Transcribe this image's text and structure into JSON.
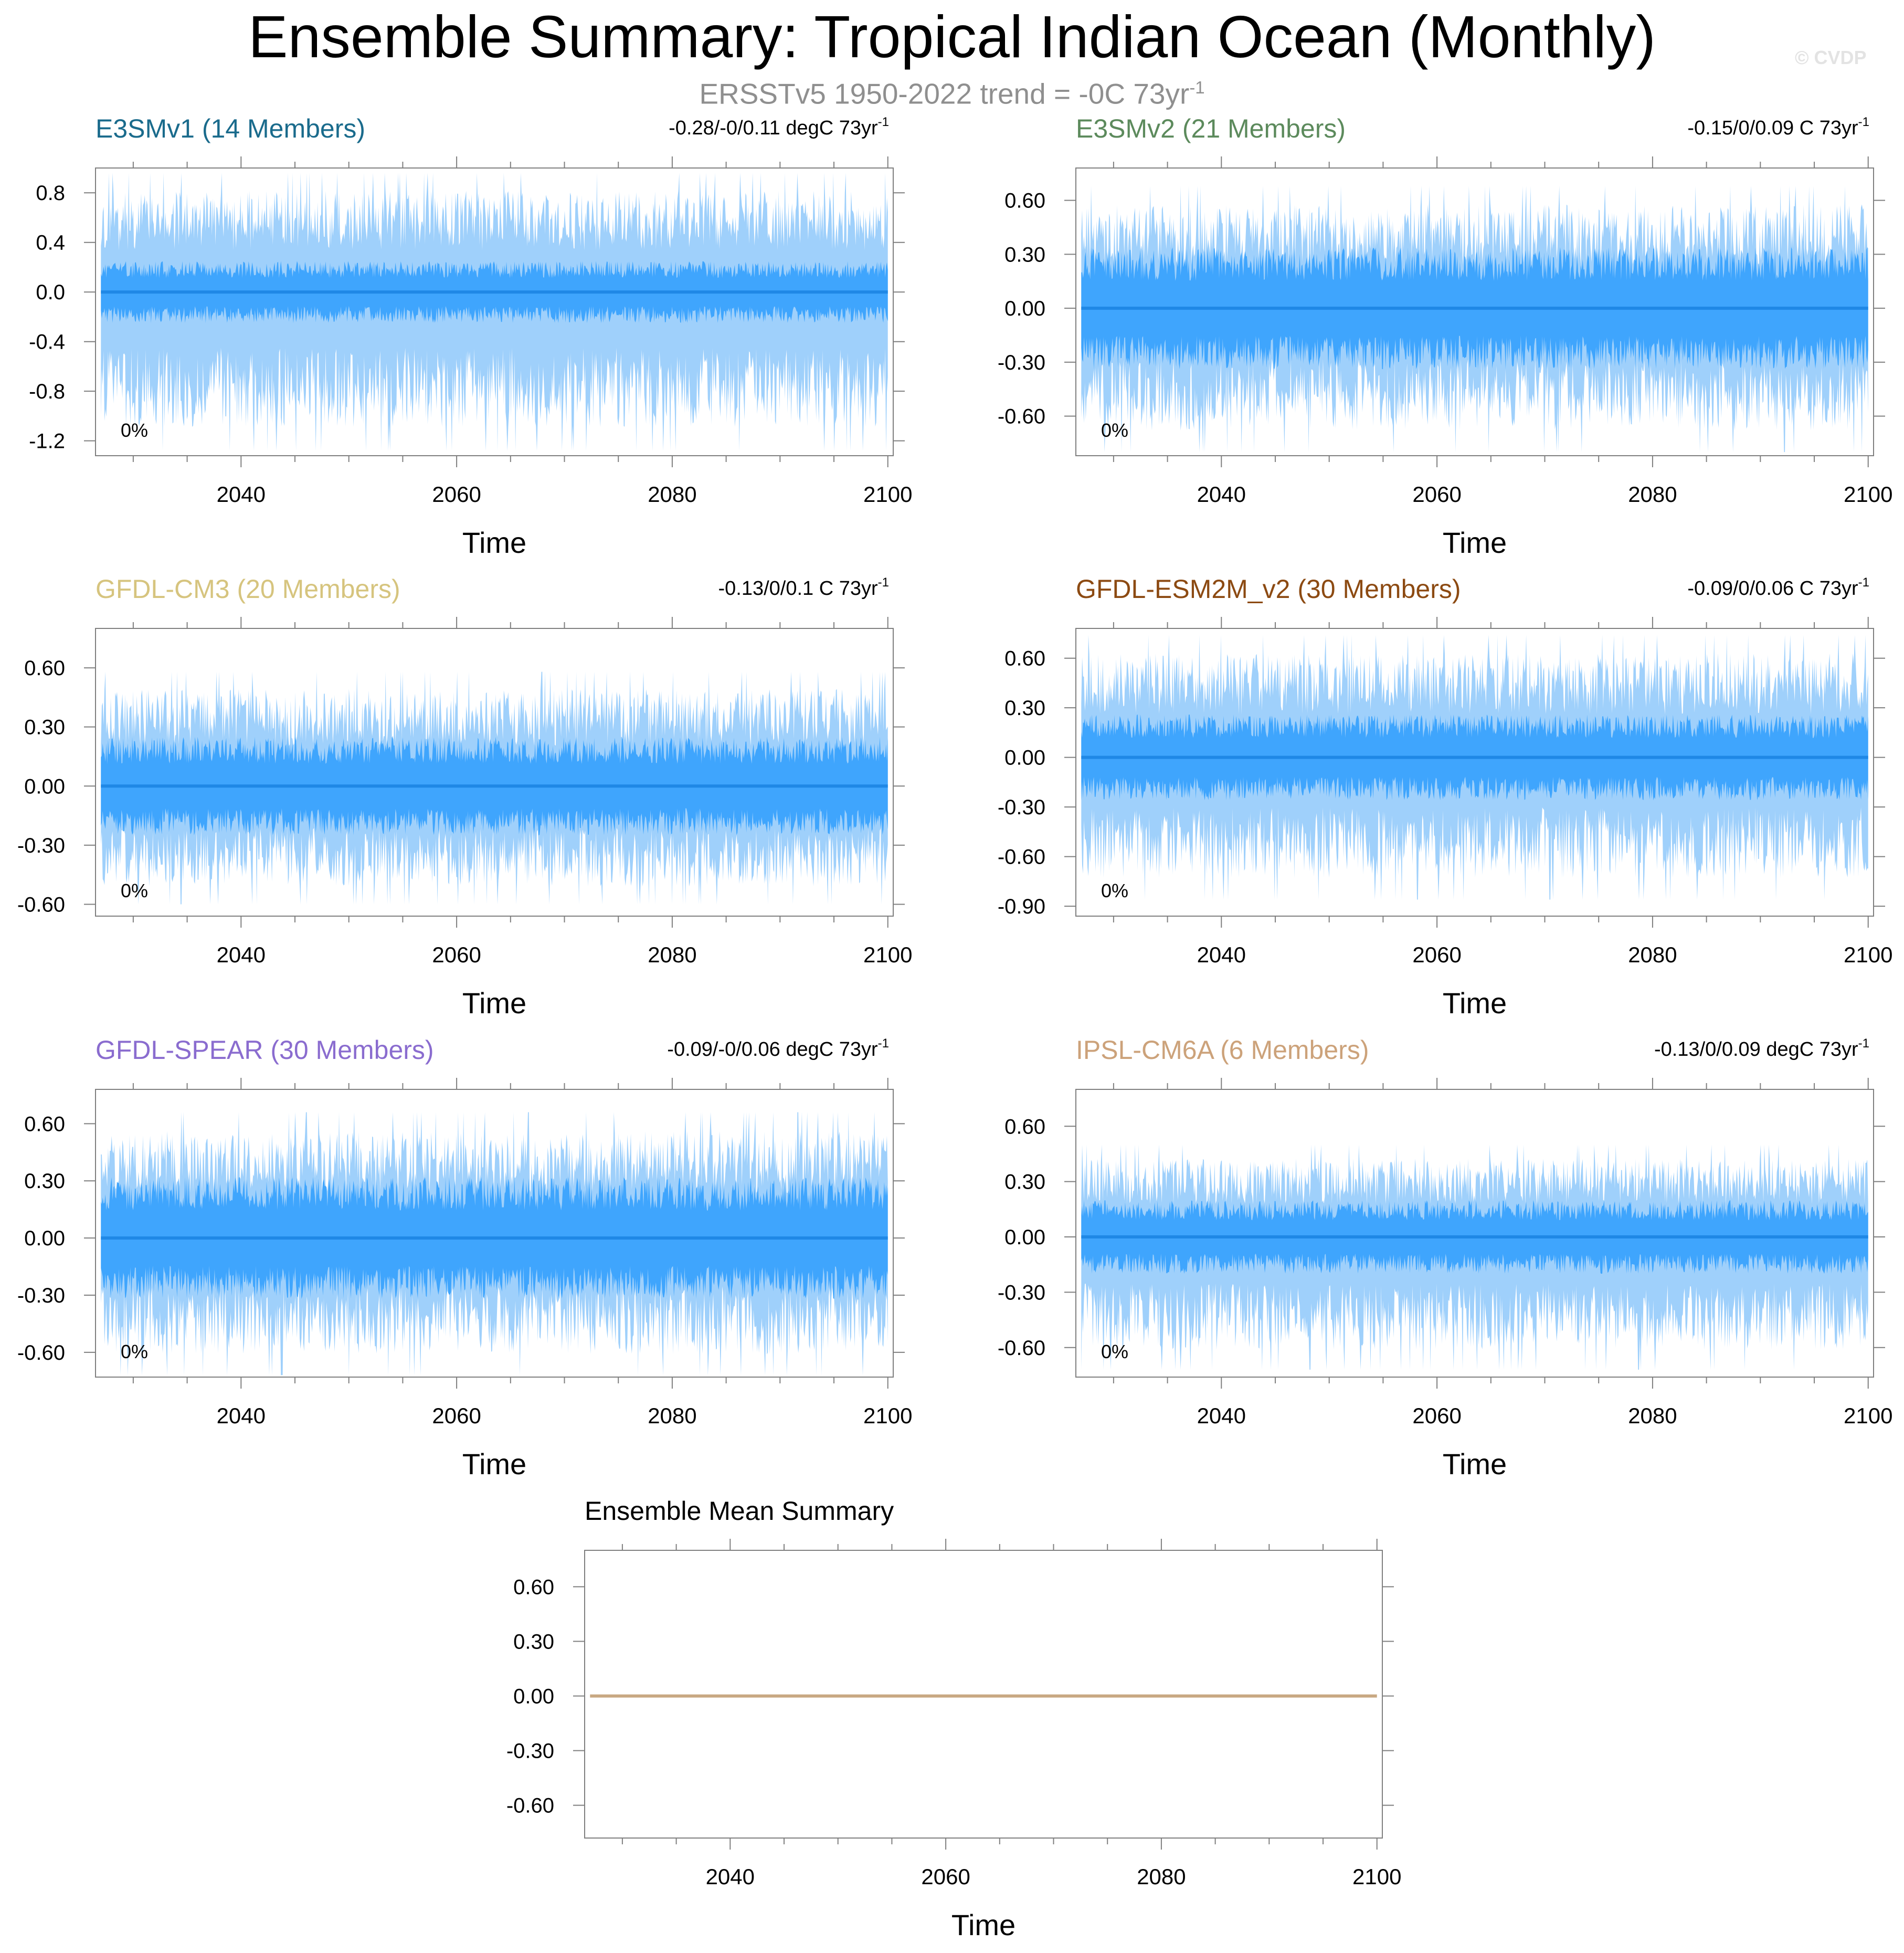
{
  "figure": {
    "title": "Ensemble Summary: Tropical Indian Ocean (Monthly)",
    "subtitle_text": "ERSSTv5 1950-2022 trend = -0C 73yr",
    "subtitle_sup": "-1",
    "watermark": "© CVDP"
  },
  "colors": {
    "spread_light": "#9fd0fb",
    "spread_dark": "#3fa5fd",
    "ensemble_mean_line": "#1f88e6",
    "summary_line": "#c8a882",
    "axis": "#7f7f7f"
  },
  "chart_data": [
    {
      "type": "area",
      "title": "E3SMv1 (14 Members)",
      "title_color": "#1a6b8c",
      "trend_text": "-0.28/-0/0.11 degC 73yr",
      "trend_sup": "-1",
      "percent_label": "0%",
      "xlabel": "Time",
      "ylabel": "",
      "xlim": [
        2026.5,
        2100.5
      ],
      "ylim": [
        -1.32,
        1.0
      ],
      "xticks": [
        2040,
        2060,
        2080,
        2100
      ],
      "yticks": [
        0.8,
        0.4,
        0.0,
        -0.4,
        -0.8,
        -1.2
      ],
      "ytick_labels": [
        "0.8",
        "0.4",
        "0.0",
        "-0.4",
        "-0.8",
        "-1.2"
      ],
      "ensemble_mean": 0.0,
      "inner_range": [
        -0.25,
        0.25
      ],
      "outer_range": [
        -1.28,
        0.96
      ],
      "seed": 11
    },
    {
      "type": "area",
      "title": "E3SMv2 (21 Members)",
      "title_color": "#5c8a5c",
      "trend_text": "-0.15/0/0.09 C 73yr",
      "trend_sup": "-1",
      "percent_label": "0%",
      "xlabel": "Time",
      "ylabel": "",
      "xlim": [
        2026.5,
        2100.5
      ],
      "ylim": [
        -0.82,
        0.78
      ],
      "xticks": [
        2040,
        2060,
        2080,
        2100
      ],
      "yticks": [
        0.6,
        0.3,
        0.0,
        -0.3,
        -0.6
      ],
      "ytick_labels": [
        "0.60",
        "0.30",
        "0.00",
        "-0.30",
        "-0.60"
      ],
      "ensemble_mean": 0.0,
      "inner_range": [
        -0.34,
        0.34
      ],
      "outer_range": [
        -0.8,
        0.68
      ],
      "seed": 23
    },
    {
      "type": "area",
      "title": "GFDL-CM3 (20 Members)",
      "title_color": "#d6c47e",
      "trend_text": "-0.13/0/0.1 C 73yr",
      "trend_sup": "-1",
      "percent_label": "0%",
      "xlabel": "Time",
      "ylabel": "",
      "xlim": [
        2026.5,
        2100.5
      ],
      "ylim": [
        -0.66,
        0.8
      ],
      "xticks": [
        2040,
        2060,
        2080,
        2100
      ],
      "yticks": [
        0.6,
        0.3,
        0.0,
        -0.3,
        -0.6
      ],
      "ytick_labels": [
        "0.60",
        "0.30",
        "0.00",
        "-0.30",
        "-0.60"
      ],
      "ensemble_mean": 0.0,
      "inner_range": [
        -0.25,
        0.25
      ],
      "outer_range": [
        -0.6,
        0.58
      ],
      "seed": 37
    },
    {
      "type": "area",
      "title": "GFDL-ESM2M_v2 (30 Members)",
      "title_color": "#8c4a12",
      "trend_text": "-0.09/0/0.06 C 73yr",
      "trend_sup": "-1",
      "percent_label": "0%",
      "xlabel": "Time",
      "ylabel": "",
      "xlim": [
        2026.5,
        2100.5
      ],
      "ylim": [
        -0.96,
        0.78
      ],
      "xticks": [
        2040,
        2060,
        2080,
        2100
      ],
      "yticks": [
        0.6,
        0.3,
        0.0,
        -0.3,
        -0.6,
        -0.9
      ],
      "ytick_labels": [
        "0.60",
        "0.30",
        "0.00",
        "-0.30",
        "-0.60",
        "-0.90"
      ],
      "ensemble_mean": 0.0,
      "inner_range": [
        -0.26,
        0.26
      ],
      "outer_range": [
        -0.86,
        0.74
      ],
      "seed": 41
    },
    {
      "type": "area",
      "title": "GFDL-SPEAR (30 Members)",
      "title_color": "#8a6ccf",
      "trend_text": "-0.09/-0/0.06 degC 73yr",
      "trend_sup": "-1",
      "percent_label": "0%",
      "xlabel": "Time",
      "ylabel": "",
      "xlim": [
        2026.5,
        2100.5
      ],
      "ylim": [
        -0.73,
        0.78
      ],
      "xticks": [
        2040,
        2060,
        2080,
        2100
      ],
      "yticks": [
        0.6,
        0.3,
        0.0,
        -0.3,
        -0.6
      ],
      "ytick_labels": [
        "0.60",
        "0.30",
        "0.00",
        "-0.30",
        "-0.60"
      ],
      "ensemble_mean": 0.0,
      "inner_range": [
        -0.32,
        0.32
      ],
      "outer_range": [
        -0.72,
        0.66
      ],
      "seed": 53
    },
    {
      "type": "area",
      "title": "IPSL-CM6A (6 Members)",
      "title_color": "#cca27a",
      "trend_text": "-0.13/0/0.09 degC 73yr",
      "trend_sup": "-1",
      "percent_label": "0%",
      "xlabel": "Time",
      "ylabel": "",
      "xlim": [
        2026.5,
        2100.5
      ],
      "ylim": [
        -0.76,
        0.8
      ],
      "xticks": [
        2040,
        2060,
        2080,
        2100
      ],
      "yticks": [
        0.6,
        0.3,
        0.0,
        -0.3,
        -0.6
      ],
      "ytick_labels": [
        "0.60",
        "0.30",
        "0.00",
        "-0.30",
        "-0.60"
      ],
      "ensemble_mean": 0.0,
      "inner_range": [
        -0.2,
        0.2
      ],
      "outer_range": [
        -0.72,
        0.5
      ],
      "seed": 67
    },
    {
      "type": "line",
      "title": "Ensemble Mean Summary",
      "title_color": "#000000",
      "trend_text": "",
      "trend_sup": "",
      "percent_label": "",
      "xlabel": "Time",
      "ylabel": "",
      "xlim": [
        2026.5,
        2100.5
      ],
      "ylim": [
        -0.78,
        0.8
      ],
      "xticks": [
        2040,
        2060,
        2080,
        2100
      ],
      "yticks": [
        0.6,
        0.3,
        0.0,
        -0.3,
        -0.6
      ],
      "ytick_labels": [
        "0.60",
        "0.30",
        "0.00",
        "-0.30",
        "-0.60"
      ],
      "series": [
        {
          "name": "",
          "x": [
            2027,
            2100
          ],
          "y": [
            0.0,
            0.0
          ]
        }
      ]
    }
  ]
}
